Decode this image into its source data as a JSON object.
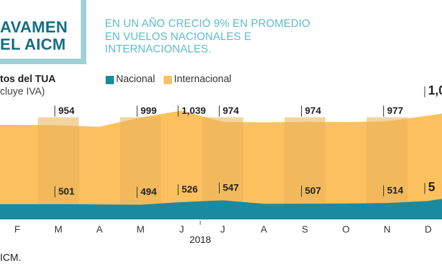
{
  "header": {
    "title_line1": "AVAMEN",
    "title_line2": "EL AICM",
    "subtitle": "EN UN AÑO CRECIÓ 9% EN PROMEDIO EN VUELOS NACIONALES E INTERNACIONALES.",
    "series_label": "tos del TUA",
    "series_note": "cluye IVA)"
  },
  "legend": [
    {
      "label": "Nacional",
      "color": "#1a8aa0"
    },
    {
      "label": "Internacional",
      "color": "#fbc15e"
    }
  ],
  "footer": {
    "source": "ICM."
  },
  "colors": {
    "international": "#fbc15e",
    "international_shaded": "#eab35a",
    "nacional": "#1a8aa0"
  },
  "chart_data": {
    "type": "area",
    "xlabel": "2018",
    "categories": [
      "F",
      "M",
      "A",
      "M",
      "J",
      "J",
      "A",
      "S",
      "O",
      "N",
      "D"
    ],
    "ylim": [
      0,
      1100
    ],
    "series": [
      {
        "name": "Internacional",
        "values": [
          956,
          954,
          945,
          999,
          1039,
          974,
          970,
          974,
          972,
          977,
          1010
        ]
      },
      {
        "name": "Nacional",
        "values": [
          500,
          501,
          498,
          494,
          526,
          547,
          505,
          507,
          508,
          514,
          540
        ]
      }
    ],
    "labels": [
      {
        "month": "M",
        "value": "954",
        "series": "Internacional"
      },
      {
        "month": "M",
        "value": "999",
        "series": "Internacional"
      },
      {
        "month": "J",
        "value": "1,039",
        "series": "Internacional"
      },
      {
        "month": "J",
        "value": "974",
        "series": "Internacional"
      },
      {
        "month": "S",
        "value": "974",
        "series": "Internacional"
      },
      {
        "month": "N",
        "value": "977",
        "series": "Internacional"
      },
      {
        "month": "D",
        "value": "1,0",
        "series": "Internacional"
      },
      {
        "month": "M",
        "value": "501",
        "series": "Nacional"
      },
      {
        "month": "M",
        "value": "494",
        "series": "Nacional"
      },
      {
        "month": "J",
        "value": "526",
        "series": "Nacional"
      },
      {
        "month": "J",
        "value": "547",
        "series": "Nacional"
      },
      {
        "month": "S",
        "value": "507",
        "series": "Nacional"
      },
      {
        "month": "N",
        "value": "514",
        "series": "Nacional"
      },
      {
        "month": "D",
        "value": "5",
        "series": "Nacional"
      }
    ]
  }
}
